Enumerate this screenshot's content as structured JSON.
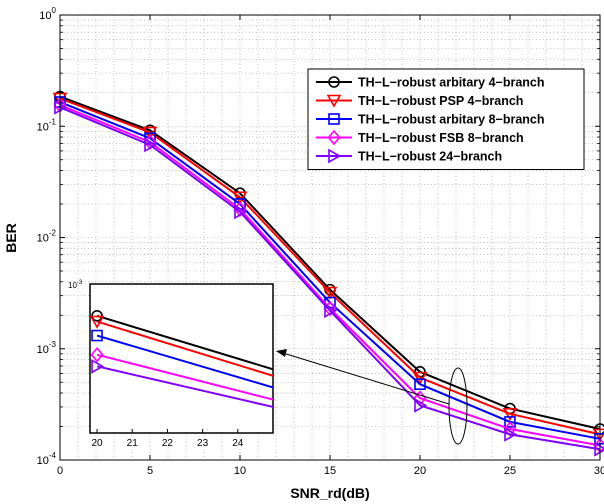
{
  "chart_data": {
    "type": "line",
    "xlabel": "SNR_rd(dB)",
    "ylabel": "BER",
    "xlim": [
      0,
      30
    ],
    "ylim": [
      0.0001,
      1
    ],
    "yscale": "log",
    "grid": true,
    "legend_position": "top-right",
    "x_ticks": [
      "0",
      "5",
      "10",
      "15",
      "20",
      "25",
      "30"
    ],
    "y_ticks": [
      {
        "base": "10",
        "exp": "0"
      },
      {
        "base": "10",
        "exp": "-1"
      },
      {
        "base": "10",
        "exp": "-2"
      },
      {
        "base": "10",
        "exp": "-3"
      },
      {
        "base": "10",
        "exp": "-4"
      }
    ],
    "x": [
      0,
      5,
      10,
      15,
      20,
      25,
      30
    ],
    "series": [
      {
        "name": "TH−L−robust arbitary 4−branch",
        "color": "#000000",
        "marker": "circle",
        "values": [
          0.185,
          0.092,
          0.025,
          0.0034,
          0.00062,
          0.00029,
          0.00019
        ]
      },
      {
        "name": "TH−L−robust PSP 4−branch",
        "color": "#ff0000",
        "marker": "triangle-down",
        "values": [
          0.178,
          0.088,
          0.023,
          0.0032,
          0.00055,
          0.00026,
          0.00017
        ]
      },
      {
        "name": "TH−L−robust arbitary 8−branch",
        "color": "#0000ff",
        "marker": "square",
        "values": [
          0.165,
          0.078,
          0.02,
          0.0026,
          0.00048,
          0.00022,
          0.000155
        ]
      },
      {
        "name": "TH−L−robust FSB 8−branch",
        "color": "#ff00ff",
        "marker": "diamond",
        "values": [
          0.155,
          0.072,
          0.018,
          0.0023,
          0.00036,
          0.00019,
          0.000135
        ]
      },
      {
        "name": "TH−L−robust 24−branch",
        "color": "#7f00ff",
        "marker": "triangle-right",
        "values": [
          0.148,
          0.068,
          0.017,
          0.0022,
          0.00031,
          0.00017,
          0.000125
        ]
      }
    ],
    "inset": {
      "exponent_label": "10",
      "exponent": "-3",
      "x_ticks": [
        "20",
        "21",
        "22",
        "23",
        "24"
      ],
      "xlim": [
        19.8,
        25
      ],
      "ylim": [
        0.0002,
        0.0035
      ],
      "series_start": [
        0.0019,
        0.0017,
        0.0013,
        0.0009,
        0.00072
      ],
      "series_end": [
        0.00068,
        0.0006,
        0.00048,
        0.00038,
        0.00033
      ]
    }
  }
}
